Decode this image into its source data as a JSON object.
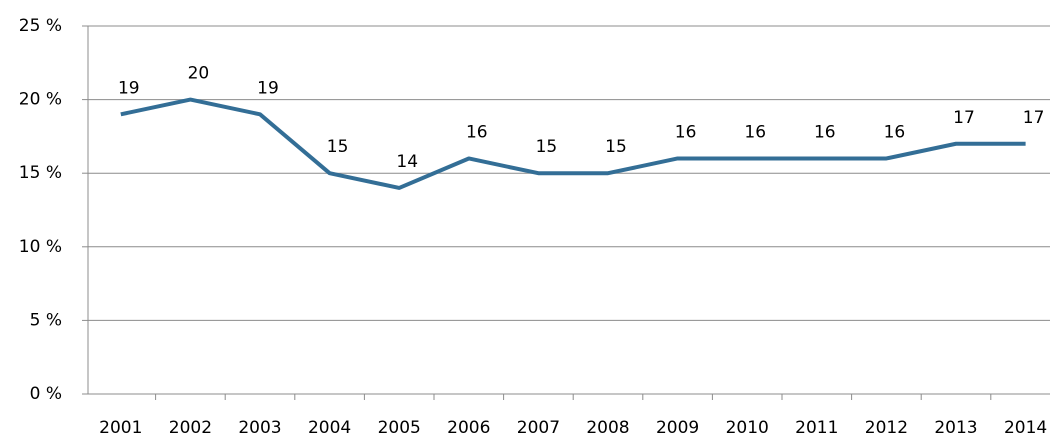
{
  "chart_data": {
    "type": "line",
    "categories": [
      "2001",
      "2002",
      "2003",
      "2004",
      "2005",
      "2006",
      "2007",
      "2008",
      "2009",
      "2010",
      "2011",
      "2012",
      "2013",
      "2014"
    ],
    "series": [
      {
        "color": "#336e96",
        "values": [
          19,
          20,
          19,
          15,
          14,
          16,
          15,
          15,
          16,
          16,
          16,
          16,
          17,
          17
        ]
      }
    ],
    "ylim": [
      0,
      25
    ],
    "yticks": [
      {
        "value": 0,
        "label": "0 %"
      },
      {
        "value": 5,
        "label": "5 %"
      },
      {
        "value": 10,
        "label": "10 %"
      },
      {
        "value": 15,
        "label": "15 %"
      },
      {
        "value": 20,
        "label": "20 %"
      },
      {
        "value": 25,
        "label": "25 %"
      }
    ],
    "grid": true
  }
}
